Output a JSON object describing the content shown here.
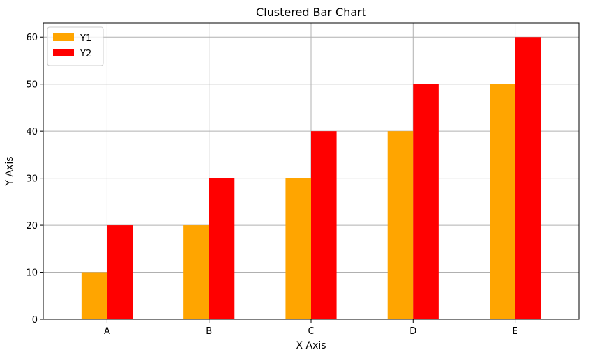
{
  "chart_data": {
    "type": "bar",
    "title": "Clustered Bar Chart",
    "xlabel": "X Axis",
    "ylabel": "Y Axis",
    "categories": [
      "A",
      "B",
      "C",
      "D",
      "E"
    ],
    "series": [
      {
        "name": "Y1",
        "values": [
          10,
          20,
          30,
          40,
          50
        ],
        "color": "#FFA500"
      },
      {
        "name": "Y2",
        "values": [
          20,
          30,
          40,
          50,
          60
        ],
        "color": "#FF0000"
      }
    ],
    "ylim": [
      0,
      63
    ],
    "yticks": [
      0,
      10,
      20,
      30,
      40,
      50,
      60
    ],
    "grid": true,
    "legend_position": "top-left"
  }
}
